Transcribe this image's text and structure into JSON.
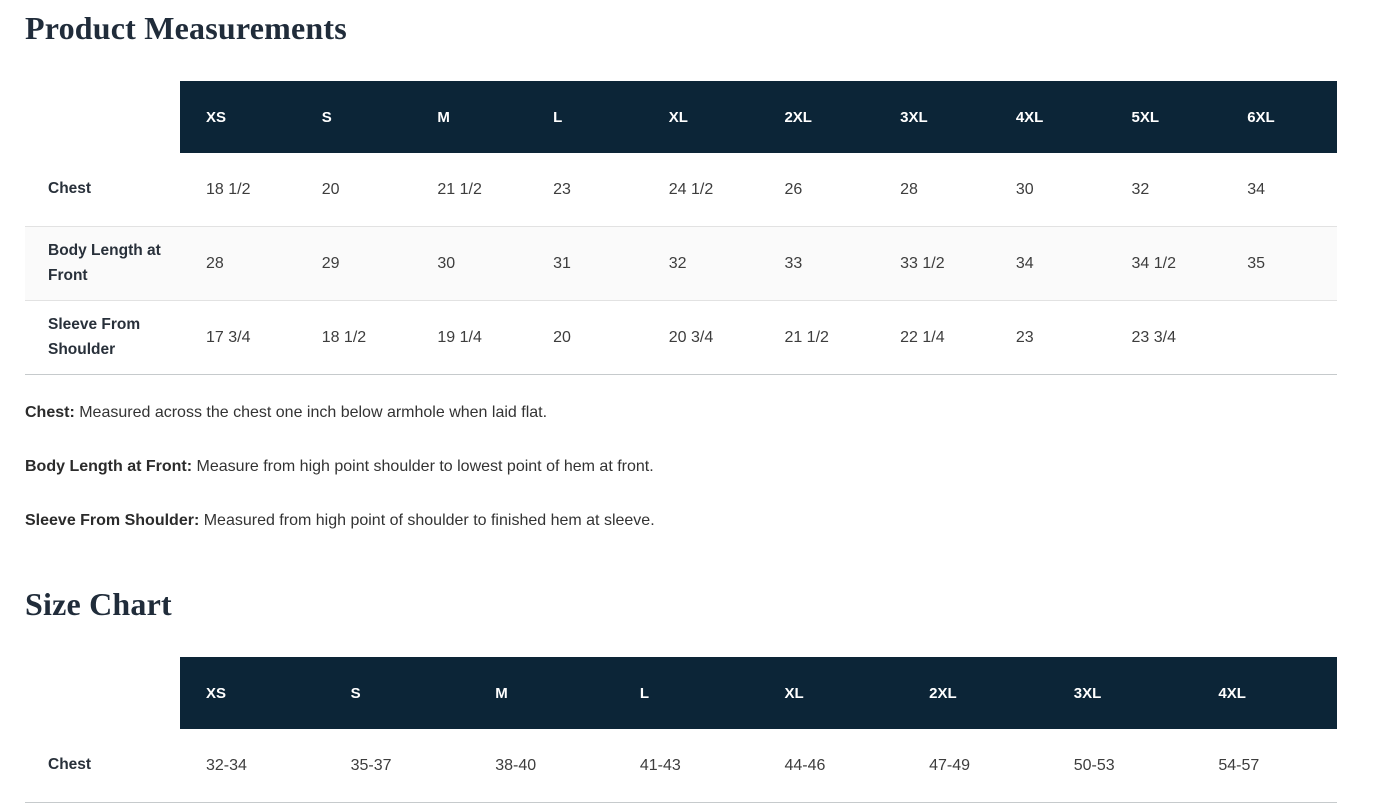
{
  "colors": {
    "table_header_bg": "#0c2537",
    "table_header_text": "#ffffff",
    "title_text": "#202c3a",
    "body_text": "#333333",
    "striped_row_bg": "#fafafa"
  },
  "product_measurements": {
    "title": "Product Measurements",
    "columns": [
      "XS",
      "S",
      "M",
      "L",
      "XL",
      "2XL",
      "3XL",
      "4XL",
      "5XL",
      "6XL"
    ],
    "rows": [
      {
        "label": "Chest",
        "values": [
          "18 1/2",
          "20",
          "21 1/2",
          "23",
          "24 1/2",
          "26",
          "28",
          "30",
          "32",
          "34"
        ]
      },
      {
        "label": "Body Length at Front",
        "values": [
          "28",
          "29",
          "30",
          "31",
          "32",
          "33",
          "33 1/2",
          "34",
          "34 1/2",
          "35"
        ]
      },
      {
        "label": "Sleeve From Shoulder",
        "values": [
          "17 3/4",
          "18 1/2",
          "19 1/4",
          "20",
          "20 3/4",
          "21 1/2",
          "22 1/4",
          "23",
          "23 3/4",
          ""
        ]
      }
    ],
    "notes": [
      {
        "term": "Chest:",
        "text": " Measured across the chest one inch below armhole when laid flat."
      },
      {
        "term": "Body Length at Front:",
        "text": " Measure from high point shoulder to lowest point of hem at front."
      },
      {
        "term": "Sleeve From Shoulder:",
        "text": " Measured from high point of shoulder to finished hem at sleeve."
      }
    ]
  },
  "size_chart": {
    "title": "Size Chart",
    "columns": [
      "XS",
      "S",
      "M",
      "L",
      "XL",
      "2XL",
      "3XL",
      "4XL"
    ],
    "rows": [
      {
        "label": "Chest",
        "values": [
          "32-34",
          "35-37",
          "38-40",
          "41-43",
          "44-46",
          "47-49",
          "50-53",
          "54-57"
        ]
      }
    ]
  }
}
